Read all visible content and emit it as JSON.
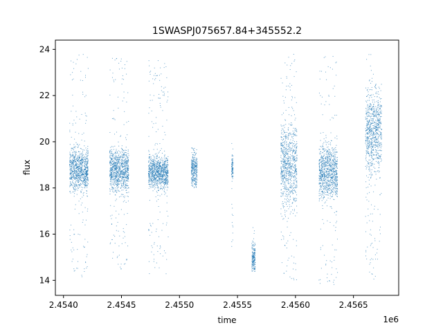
{
  "chart_data": {
    "type": "scatter",
    "title": "1SWASPJ075657.84+345552.2",
    "xlabel": "time",
    "ylabel": "flux",
    "x_offset_label": "1e6",
    "xlim": [
      2453930,
      2456890
    ],
    "ylim": [
      13.35,
      24.4
    ],
    "x_ticks": [
      2454000,
      2454500,
      2455000,
      2455500,
      2456000,
      2456500
    ],
    "x_tick_labels": [
      "2.4540",
      "2.4545",
      "2.4550",
      "2.4555",
      "2.4560",
      "2.4565"
    ],
    "y_ticks": [
      14,
      16,
      18,
      20,
      22,
      24
    ],
    "y_tick_labels": [
      "14",
      "16",
      "18",
      "20",
      "22",
      "24"
    ],
    "grid": false,
    "point_color": "#1f77b4",
    "clusters": [
      {
        "x_start": 2454050,
        "x_end": 2454210,
        "y_center": 18.8,
        "core_spread": 0.45,
        "outlier_range": [
          14.1,
          23.8
        ]
      },
      {
        "x_start": 2454395,
        "x_end": 2454560,
        "y_center": 18.8,
        "core_spread": 0.45,
        "outlier_range": [
          14.5,
          23.7
        ]
      },
      {
        "x_start": 2454730,
        "x_end": 2454900,
        "y_center": 18.7,
        "core_spread": 0.35,
        "outlier_range": [
          14.3,
          23.6
        ]
      },
      {
        "x_start": 2455100,
        "x_end": 2455150,
        "y_center": 18.8,
        "core_spread": 0.35,
        "outlier_range": [
          18.0,
          19.8
        ]
      },
      {
        "x_start": 2455445,
        "x_end": 2455460,
        "y_center": 18.9,
        "core_spread": 0.3,
        "outlier_range": [
          15.2,
          20.0
        ]
      },
      {
        "x_start": 2455620,
        "x_end": 2455650,
        "y_center": 15.0,
        "core_spread": 0.3,
        "outlier_range": [
          14.4,
          16.4
        ]
      },
      {
        "x_start": 2455870,
        "x_end": 2456010,
        "y_center": 19.0,
        "core_spread": 0.9,
        "outlier_range": [
          13.9,
          23.9
        ]
      },
      {
        "x_start": 2456200,
        "x_end": 2456360,
        "y_center": 18.7,
        "core_spread": 0.55,
        "outlier_range": [
          13.8,
          23.8
        ]
      },
      {
        "x_start": 2456600,
        "x_end": 2456740,
        "y_center": 20.5,
        "core_spread": 0.9,
        "outlier_range": [
          14.0,
          23.9
        ]
      }
    ]
  }
}
